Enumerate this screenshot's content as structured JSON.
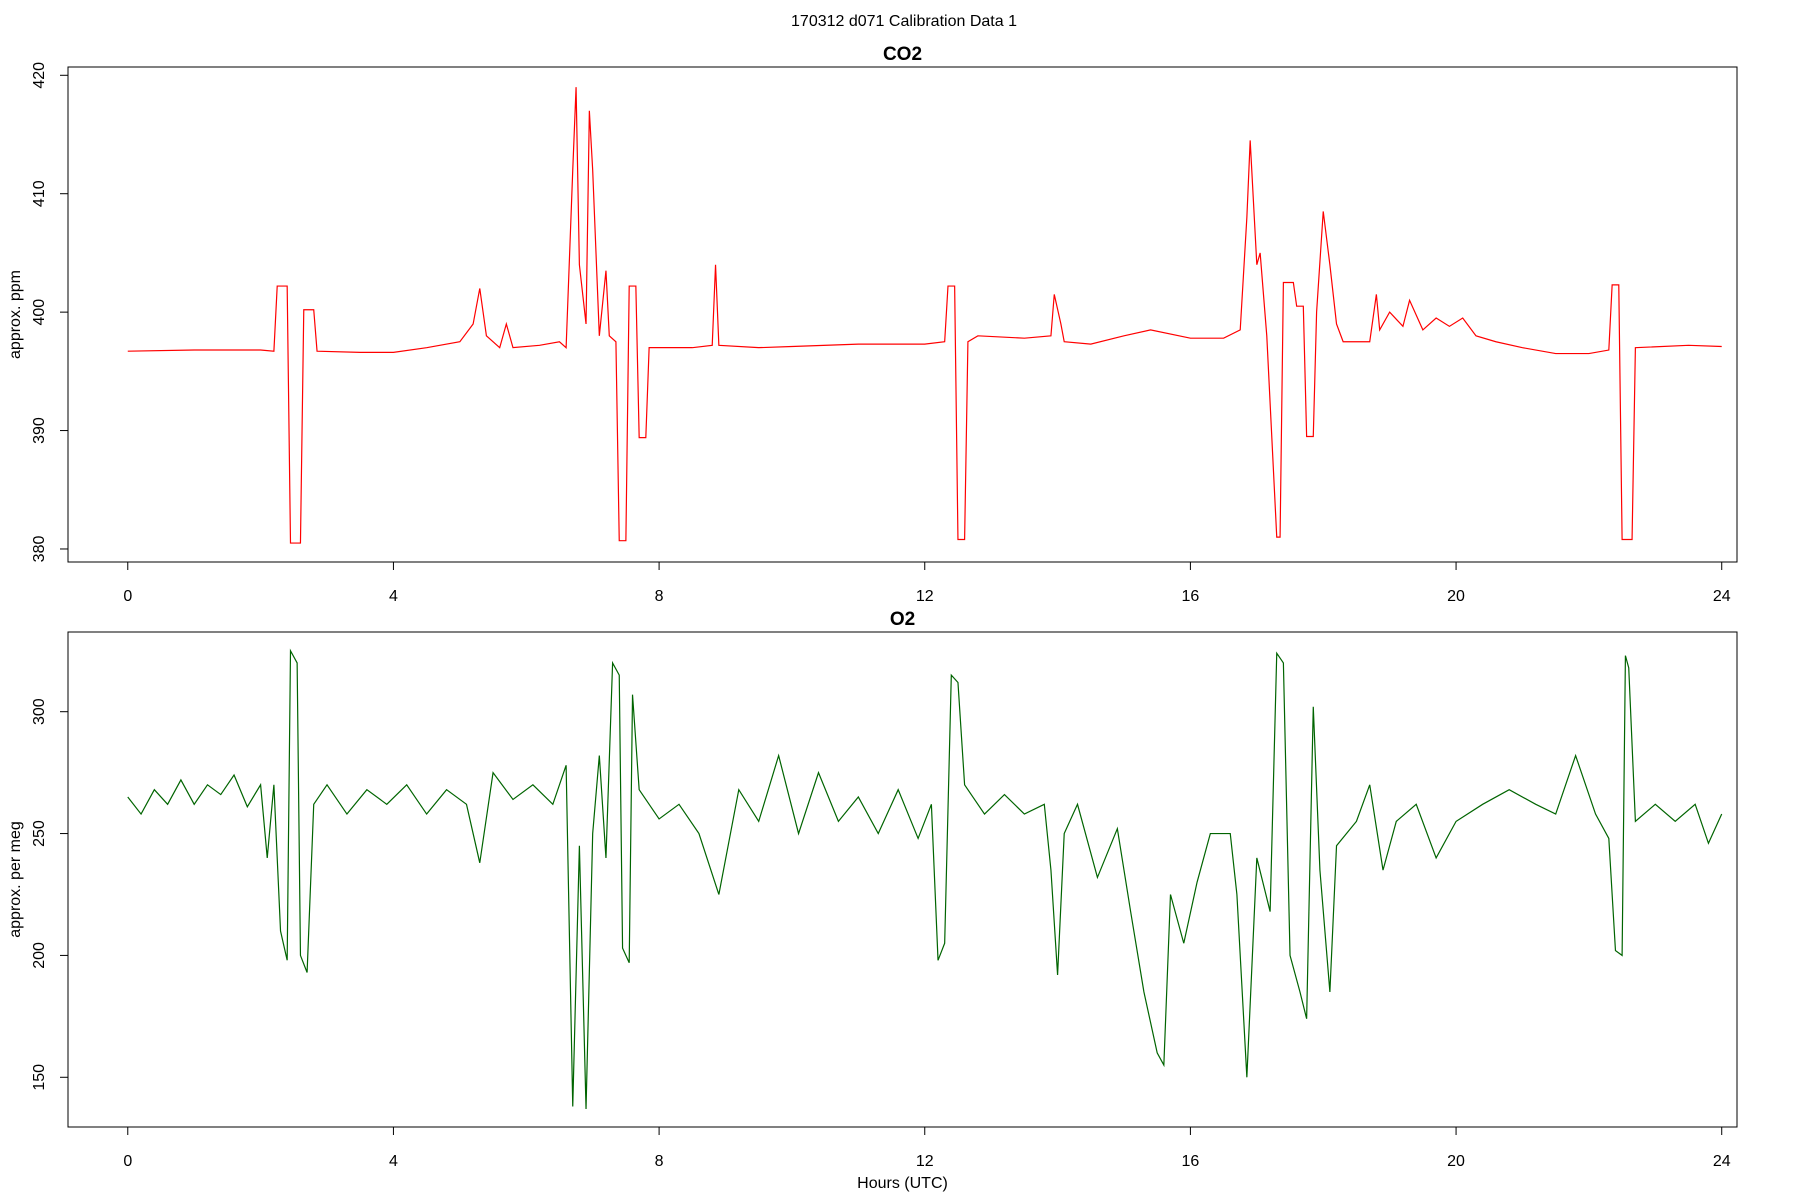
{
  "title": "170312   d071   Calibration Data 1",
  "chart_data": [
    {
      "type": "line",
      "title": "CO2",
      "y_label": "approx. ppm",
      "color": "#ff0000",
      "x": [
        0,
        1,
        2,
        2.2,
        2.25,
        2.4,
        2.45,
        2.6,
        2.65,
        2.8,
        2.85,
        3.5,
        4,
        4.5,
        5,
        5.2,
        5.3,
        5.4,
        5.6,
        5.7,
        5.8,
        6.2,
        6.5,
        6.6,
        6.7,
        6.75,
        6.8,
        6.9,
        6.95,
        7.0,
        7.1,
        7.2,
        7.25,
        7.35,
        7.4,
        7.5,
        7.55,
        7.65,
        7.7,
        7.8,
        7.85,
        8.5,
        8.8,
        8.85,
        8.9,
        9.5,
        10,
        11,
        12,
        12.3,
        12.35,
        12.45,
        12.5,
        12.6,
        12.65,
        12.8,
        13.5,
        13.9,
        13.95,
        14.05,
        14.1,
        14.5,
        15,
        15.4,
        16,
        16.5,
        16.75,
        16.85,
        16.9,
        17.0,
        17.05,
        17.15,
        17.3,
        17.35,
        17.4,
        17.55,
        17.6,
        17.7,
        17.75,
        17.85,
        17.9,
        18.0,
        18.1,
        18.2,
        18.3,
        18.7,
        18.8,
        18.85,
        19,
        19.2,
        19.3,
        19.5,
        19.7,
        19.9,
        20.1,
        20.3,
        20.6,
        21,
        21.5,
        22,
        22.3,
        22.35,
        22.45,
        22.5,
        22.65,
        22.7,
        23.5,
        24
      ],
      "values": [
        396.7,
        396.8,
        396.8,
        396.7,
        402.2,
        402.2,
        380.5,
        380.5,
        400.2,
        400.2,
        396.7,
        396.6,
        396.6,
        397,
        397.5,
        399,
        402,
        398,
        397,
        399,
        397,
        397.2,
        397.5,
        397,
        412,
        419,
        404,
        399,
        417,
        412,
        398,
        403.5,
        398,
        397.5,
        380.7,
        380.7,
        402.2,
        402.2,
        389.4,
        389.4,
        397,
        397,
        397.2,
        404,
        397.2,
        397,
        397.1,
        397.3,
        397.3,
        397.5,
        402.2,
        402.2,
        380.8,
        380.8,
        397.5,
        398,
        397.8,
        398,
        401.5,
        399,
        397.5,
        397.3,
        398,
        398.5,
        397.8,
        397.8,
        398.5,
        408,
        414.5,
        404,
        405,
        398,
        381,
        381,
        402.5,
        402.5,
        400.5,
        400.5,
        389.5,
        389.5,
        400,
        408.5,
        404,
        399,
        397.5,
        397.5,
        401.5,
        398.5,
        400,
        398.8,
        401,
        398.5,
        399.5,
        398.8,
        399.5,
        398,
        397.5,
        397,
        396.5,
        396.5,
        396.8,
        402.3,
        402.3,
        380.8,
        380.8,
        397,
        397.2,
        397.1
      ],
      "xlim": [
        -0.9,
        24.23
      ],
      "xticks": [
        0,
        4,
        8,
        12,
        16,
        20,
        24
      ],
      "ylim": [
        378.9,
        420.7
      ],
      "yticks": [
        380,
        390,
        400,
        410,
        420
      ]
    },
    {
      "type": "line",
      "title": "O2",
      "y_label": "approx. per meg",
      "x_label": "Hours (UTC)",
      "color": "#006400",
      "x": [
        0,
        0.2,
        0.4,
        0.6,
        0.8,
        1,
        1.2,
        1.4,
        1.6,
        1.8,
        2,
        2.1,
        2.2,
        2.3,
        2.4,
        2.45,
        2.55,
        2.6,
        2.7,
        2.8,
        3,
        3.3,
        3.6,
        3.9,
        4.2,
        4.5,
        4.8,
        5.1,
        5.3,
        5.5,
        5.8,
        6.1,
        6.4,
        6.6,
        6.7,
        6.8,
        6.9,
        7.0,
        7.1,
        7.2,
        7.3,
        7.4,
        7.45,
        7.55,
        7.6,
        7.7,
        8,
        8.3,
        8.6,
        8.9,
        9.2,
        9.5,
        9.8,
        10.1,
        10.4,
        10.7,
        11,
        11.3,
        11.6,
        11.9,
        12.1,
        12.2,
        12.3,
        12.4,
        12.5,
        12.6,
        12.9,
        13.2,
        13.5,
        13.8,
        13.9,
        14,
        14.1,
        14.3,
        14.6,
        14.9,
        15.1,
        15.3,
        15.5,
        15.6,
        15.7,
        15.9,
        16.1,
        16.3,
        16.6,
        16.7,
        16.85,
        17,
        17.2,
        17.3,
        17.4,
        17.5,
        17.65,
        17.75,
        17.85,
        17.95,
        18.1,
        18.2,
        18.5,
        18.7,
        18.9,
        19.1,
        19.4,
        19.7,
        20,
        20.4,
        20.8,
        21.2,
        21.5,
        21.8,
        22.1,
        22.3,
        22.4,
        22.5,
        22.55,
        22.6,
        22.7,
        23,
        23.3,
        23.6,
        23.8,
        24
      ],
      "values": [
        265,
        258,
        268,
        262,
        272,
        262,
        270,
        266,
        274,
        261,
        270,
        240,
        270,
        210,
        198,
        325,
        320,
        200,
        193,
        262,
        270,
        258,
        268,
        262,
        270,
        258,
        268,
        262,
        238,
        275,
        264,
        270,
        262,
        278,
        138,
        245,
        137,
        250,
        282,
        240,
        320,
        315,
        203,
        197,
        307,
        268,
        256,
        262,
        250,
        225,
        268,
        255,
        282,
        250,
        275,
        255,
        265,
        250,
        268,
        248,
        262,
        198,
        205,
        315,
        312,
        270,
        258,
        266,
        258,
        262,
        235,
        192,
        250,
        262,
        232,
        252,
        218,
        185,
        160,
        155,
        225,
        205,
        230,
        250,
        250,
        225,
        150,
        240,
        218,
        324,
        320,
        200,
        185,
        174,
        302,
        235,
        185,
        245,
        255,
        270,
        235,
        255,
        262,
        240,
        255,
        262,
        268,
        262,
        258,
        282,
        258,
        248,
        202,
        200,
        323,
        318,
        255,
        262,
        255,
        262,
        246,
        258
      ],
      "xlim": [
        -0.9,
        24.23
      ],
      "xticks": [
        0,
        4,
        8,
        12,
        16,
        20,
        24
      ],
      "ylim": [
        129.6,
        332.7
      ],
      "yticks": [
        150,
        200,
        250,
        300
      ]
    }
  ]
}
